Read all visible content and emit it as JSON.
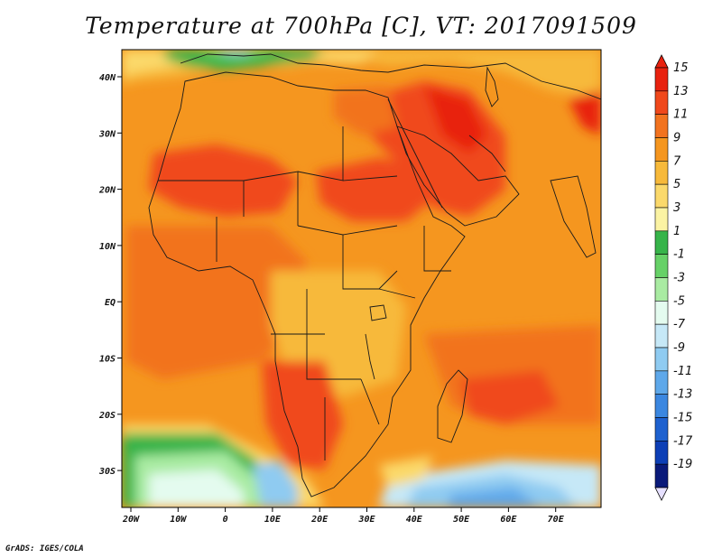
{
  "title": "Temperature at 700hPa [C], VT: 2017091509",
  "credit": "GrADS: IGES/COLA",
  "map": {
    "lon_ticks": [
      "20W",
      "10W",
      "0",
      "10E",
      "20E",
      "30E",
      "40E",
      "50E",
      "60E",
      "70E"
    ],
    "lat_ticks": [
      "40N",
      "30N",
      "20N",
      "10N",
      "EQ",
      "10S",
      "20S",
      "30S"
    ]
  },
  "colorbar": {
    "labels": [
      "15",
      "13",
      "11",
      "9",
      "7",
      "5",
      "3",
      "1",
      "-1",
      "-3",
      "-5",
      "-7",
      "-9",
      "-11",
      "-13",
      "-15",
      "-17",
      "-19"
    ],
    "colors": [
      "#e8220f",
      "#f0481b",
      "#f2731f",
      "#f5961f",
      "#f7b93a",
      "#fbd96b",
      "#fbf3a3",
      "#37b44a",
      "#66d167",
      "#a9eba2",
      "#e4fbef",
      "#c6e8f7",
      "#8fcbf1",
      "#5ea8ea",
      "#3b87e0",
      "#1e61cf",
      "#0d3fb6",
      "#0a1a7a"
    ]
  }
}
